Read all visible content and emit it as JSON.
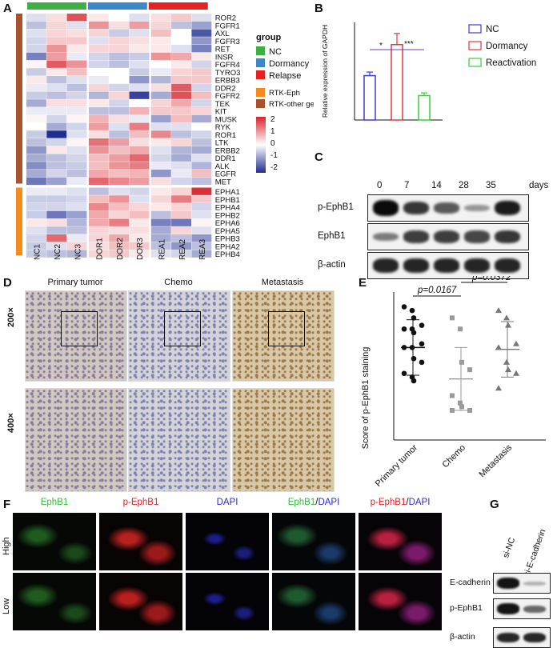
{
  "panels": {
    "a": "A",
    "b": "B",
    "c": "C",
    "d": "D",
    "e": "E",
    "f": "F",
    "g": "G"
  },
  "heatmap": {
    "genes": [
      "ROR2",
      "FGFR1",
      "AXL",
      "FGFR3",
      "RET",
      "INSR",
      "FGFR4",
      "TYRO3",
      "ERBB3",
      "DDR2",
      "FGFR2",
      "TEK",
      "KIT",
      "MUSK",
      "RYK",
      "ROR1",
      "LTK",
      "ERBB2",
      "DDR1",
      "ALK",
      "EGFR",
      "MET",
      "EPHA1",
      "EPHB1",
      "EPHA4",
      "EPHB2",
      "EPHA6",
      "EPHA5",
      "EPHB3",
      "EPHA2",
      "EPHB4"
    ],
    "samples": [
      "NC1",
      "NC2",
      "NC3",
      "DOR1",
      "DOR2",
      "DOR3",
      "REA1",
      "REA2",
      "REA3"
    ],
    "values": [
      [
        -0.3,
        0.3,
        1.6,
        0.2,
        0.0,
        -0.3,
        0.3,
        0.5,
        -0.3
      ],
      [
        -0.6,
        0.4,
        -0.3,
        1.0,
        0.3,
        0.9,
        0.4,
        -0.6,
        -0.9
      ],
      [
        -0.3,
        0.4,
        0.3,
        0.4,
        -0.5,
        -0.3,
        0.6,
        0.0,
        -1.6
      ],
      [
        -0.4,
        0.5,
        0.5,
        -0.3,
        0.4,
        0.3,
        0.2,
        0.0,
        -1.0
      ],
      [
        -0.4,
        1.0,
        0.2,
        0.4,
        0.4,
        0.2,
        0.2,
        -0.3,
        -1.2
      ],
      [
        -1.2,
        0.9,
        -0.2,
        -0.4,
        -0.6,
        -0.5,
        1.0,
        0.8,
        0.2
      ],
      [
        0.1,
        1.5,
        1.0,
        -0.4,
        -0.6,
        -0.3,
        0.0,
        0.2,
        -0.4
      ],
      [
        -0.5,
        0.2,
        0.6,
        0.0,
        0.0,
        -0.5,
        -0.2,
        0.4,
        0.5
      ],
      [
        0.2,
        -0.6,
        -0.3,
        -0.2,
        0.0,
        -1.0,
        -0.7,
        0.5,
        0.5
      ],
      [
        -0.2,
        -0.3,
        -0.6,
        0.4,
        -0.4,
        -0.3,
        0.3,
        1.5,
        -0.4
      ],
      [
        -0.5,
        -0.6,
        -0.4,
        -0.7,
        0.4,
        -1.8,
        -0.8,
        1.6,
        0.6
      ],
      [
        -0.8,
        0.3,
        0.3,
        0.2,
        -0.4,
        0.0,
        0.4,
        0.8,
        -0.4
      ],
      [
        -0.2,
        -0.2,
        -0.2,
        -0.6,
        -0.6,
        0.7,
        0.5,
        0.5,
        0.4
      ],
      [
        0.1,
        -0.4,
        0.1,
        0.7,
        0.3,
        -0.2,
        -0.9,
        0.6,
        -0.8
      ],
      [
        0.0,
        -0.8,
        -0.4,
        0.9,
        -0.3,
        1.2,
        -0.3,
        -0.3,
        0.0
      ],
      [
        -0.5,
        -2.0,
        -0.3,
        0.3,
        -0.6,
        0.6,
        1.1,
        -0.6,
        -0.4
      ],
      [
        -0.6,
        -0.4,
        0.1,
        1.3,
        0.9,
        0.3,
        0.2,
        0.4,
        -0.6
      ],
      [
        -1.0,
        0.2,
        -0.3,
        1.0,
        0.6,
        0.8,
        -0.3,
        -0.7,
        -0.8
      ],
      [
        -0.8,
        -0.6,
        -0.4,
        0.6,
        0.9,
        1.4,
        -0.4,
        -0.8,
        -0.3
      ],
      [
        -1.1,
        -0.6,
        -0.5,
        0.6,
        1.0,
        1.2,
        -0.2,
        -0.3,
        -0.7
      ],
      [
        -0.8,
        -0.4,
        -0.6,
        0.8,
        0.6,
        0.7,
        -1.0,
        -0.2,
        0.6
      ],
      [
        -1.3,
        -0.9,
        -0.2,
        1.4,
        1.1,
        0.9,
        0.3,
        -0.4,
        -0.6
      ],
      [
        -0.2,
        -0.2,
        -0.3,
        -0.6,
        -0.3,
        -0.4,
        0.2,
        0.4,
        1.9
      ],
      [
        -0.5,
        -0.5,
        -0.4,
        0.6,
        1.0,
        -0.3,
        0.4,
        1.2,
        0.5
      ],
      [
        -0.4,
        -0.4,
        -0.3,
        1.1,
        0.6,
        0.4,
        0.2,
        0.4,
        -0.4
      ],
      [
        -0.5,
        -1.3,
        -0.9,
        0.8,
        0.4,
        0.6,
        -0.6,
        0.5,
        -0.3
      ],
      [
        0.2,
        0.3,
        -0.7,
        0.8,
        1.2,
        0.2,
        -1.2,
        -1.3,
        0.1
      ],
      [
        -0.3,
        -0.6,
        -0.6,
        0.4,
        0.3,
        0.3,
        -0.8,
        0.4,
        -0.3
      ],
      [
        -0.4,
        1.4,
        -0.2,
        0.4,
        0.8,
        0.2,
        -0.8,
        -0.6,
        -1.0
      ],
      [
        -0.5,
        -0.3,
        0.4,
        0.3,
        0.6,
        0.5,
        -0.6,
        -1.0,
        -0.6
      ],
      [
        -0.5,
        -0.6,
        -0.7,
        0.4,
        0.5,
        0.2,
        -0.3,
        -0.4,
        -0.8
      ]
    ],
    "group_colors": [
      "#3cb043",
      "#3a87c9",
      "#e8201f",
      "#e8201f"
    ],
    "row_group_colors": {
      "rtk_other": "#a8532b",
      "rtk_eph": "#f58a1f"
    },
    "legend_title": "group",
    "legend_groups": [
      {
        "label": "NC",
        "color": "#3cb043"
      },
      {
        "label": "Dormancy",
        "color": "#3a87c9"
      },
      {
        "label": "Relapse",
        "color": "#e8201f"
      }
    ],
    "legend_rows": [
      {
        "label": "RTK-Eph",
        "color": "#f58a1f"
      },
      {
        "label": "RTK-other genes",
        "color": "#a8532b"
      }
    ],
    "scale_ticks": [
      "2",
      "1",
      "0",
      "-1",
      "-2"
    ]
  },
  "chart_data": [
    {
      "type": "bar",
      "ylabel": "Relative expression of GAPDH",
      "categories": [
        "NC",
        "Dormancy",
        "Reactivation"
      ],
      "values": [
        1.0,
        1.7,
        0.55
      ],
      "errors": [
        0.08,
        0.25,
        0.06
      ],
      "colors": [
        "#3b3bd6",
        "#e0393b",
        "#35d135"
      ],
      "legend": [
        "NC",
        "Dormancy",
        "Reactivation"
      ],
      "annotations": [
        "*",
        "***"
      ],
      "ylim": [
        0,
        2.2
      ]
    },
    {
      "type": "scatter",
      "ylabel": "Score of p-EphB1 staining",
      "categories": [
        "Primary tumor",
        "Chemo",
        "Metastasis"
      ],
      "annotations": [
        "p=0.0167",
        "p=0.0372"
      ],
      "groups": [
        {
          "name": "Primary tumor",
          "marker": "circle",
          "color": "#111111",
          "mean": 25,
          "sd": 7.5,
          "values": [
            36,
            35,
            33,
            31,
            30,
            30,
            29,
            26,
            25,
            25,
            22,
            21,
            18,
            17,
            16
          ]
        },
        {
          "name": "Chemo",
          "marker": "square",
          "color": "#9a9a9a",
          "mean": 16.5,
          "sd": 8.5,
          "values": [
            33,
            30,
            21,
            19,
            12,
            10,
            9,
            8,
            8
          ]
        },
        {
          "name": "Metastasis",
          "marker": "triangle",
          "color": "#777777",
          "mean": 24.5,
          "sd": 7.5,
          "values": [
            35,
            33,
            31,
            26,
            25,
            21,
            19,
            18,
            14
          ]
        }
      ],
      "ylim": [
        0,
        40
      ]
    }
  ],
  "blot_c": {
    "timepoints": [
      "0",
      "7",
      "14",
      "28",
      "35"
    ],
    "unit": "days",
    "rows": [
      {
        "label": "p-EphB1",
        "intensity": [
          1.0,
          0.75,
          0.55,
          0.2,
          0.9
        ]
      },
      {
        "label": "EphB1",
        "intensity": [
          0.35,
          0.7,
          0.7,
          0.65,
          0.75
        ]
      },
      {
        "label": "β-actin",
        "intensity": [
          0.85,
          0.85,
          0.85,
          0.85,
          0.85
        ]
      }
    ]
  },
  "ihc": {
    "columns": [
      "Primary tumor",
      "Chemo",
      "Metastasis"
    ],
    "rows": [
      "200×",
      "400×"
    ]
  },
  "if_panel": {
    "columns": [
      {
        "parts": [
          {
            "text": "EphB1",
            "color": "#2fbf3a"
          }
        ]
      },
      {
        "parts": [
          {
            "text": "p-EphB1",
            "color": "#e0202a"
          }
        ]
      },
      {
        "parts": [
          {
            "text": "DAPI",
            "color": "#2a2adb"
          }
        ]
      },
      {
        "parts": [
          {
            "text": "EphB1",
            "color": "#2fbf3a"
          },
          {
            "text": "/",
            "color": "#111111"
          },
          {
            "text": "DAPI",
            "color": "#2a2adb"
          }
        ]
      },
      {
        "parts": [
          {
            "text": "p-EphB1",
            "color": "#e0202a"
          },
          {
            "text": "/",
            "color": "#111111"
          },
          {
            "text": "DAPI",
            "color": "#2a2adb"
          }
        ]
      }
    ],
    "rows": [
      "High",
      "Low"
    ]
  },
  "blot_g": {
    "lanes": [
      "si-NC",
      "si-E-cadherin"
    ],
    "rows": [
      {
        "label": "E-cadherin",
        "intensity": [
          0.95,
          0.1
        ]
      },
      {
        "label": "p-EphB1",
        "intensity": [
          0.95,
          0.5
        ]
      },
      {
        "label": "β-actin",
        "intensity": [
          0.85,
          0.85
        ]
      }
    ]
  }
}
